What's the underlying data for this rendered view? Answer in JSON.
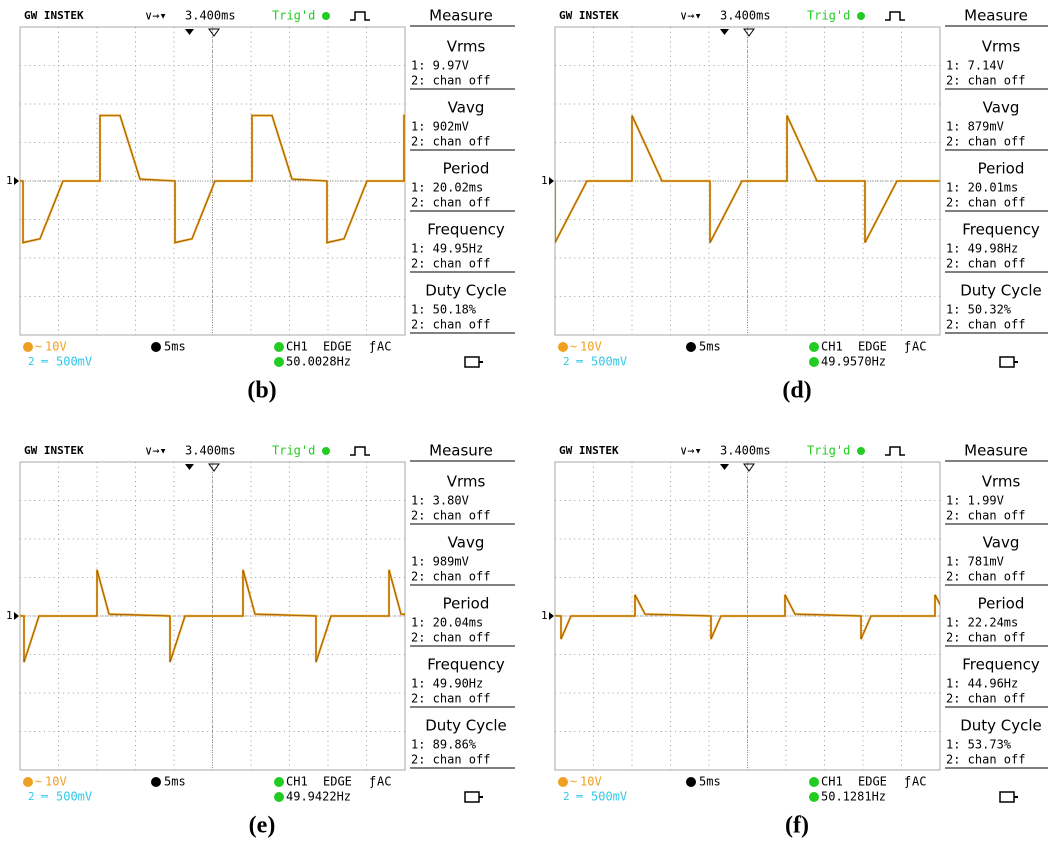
{
  "panels": [
    {
      "header": {
        "brand": "GW INSTEK",
        "timebase": "3.400ms",
        "trigger_status": "Trig'd",
        "menu": "Measure"
      },
      "measurements": [
        {
          "name": "Vrms",
          "ch1": "1: 9.97V",
          "ch2": "2: chan off"
        },
        {
          "name": "Vavg",
          "ch1": "1: 902mV",
          "ch2": "2: chan off"
        },
        {
          "name": "Period",
          "ch1": "1: 20.02ms",
          "ch2": "2: chan off"
        },
        {
          "name": "Frequency",
          "ch1": "1: 49.95Hz",
          "ch2": "2: chan off"
        },
        {
          "name": "Duty Cycle",
          "ch1": "1: 50.18%",
          "ch2": "2: chan off"
        }
      ],
      "footer": {
        "ch1_scale": "10V",
        "ch2_scale": "500mV",
        "time_scale": "5ms",
        "trigger_source": "CH1",
        "trigger_type": "EDGE",
        "trigger_coupling": "AC",
        "trigger_frequency": "50.0028Hz"
      },
      "channel_marker": "1",
      "caption": "(b)"
    },
    {
      "header": {
        "brand": "GW INSTEK",
        "timebase": "3.400ms",
        "trigger_status": "Trig'd",
        "menu": "Measure"
      },
      "measurements": [
        {
          "name": "Vrms",
          "ch1": "1: 7.14V",
          "ch2": "2: chan off"
        },
        {
          "name": "Vavg",
          "ch1": "1: 879mV",
          "ch2": "2: chan off"
        },
        {
          "name": "Period",
          "ch1": "1: 20.01ms",
          "ch2": "2: chan off"
        },
        {
          "name": "Frequency",
          "ch1": "1: 49.98Hz",
          "ch2": "2: chan off"
        },
        {
          "name": "Duty Cycle",
          "ch1": "1: 50.32%",
          "ch2": "2: chan off"
        }
      ],
      "footer": {
        "ch1_scale": "10V",
        "ch2_scale": "500mV",
        "time_scale": "5ms",
        "trigger_source": "CH1",
        "trigger_type": "EDGE",
        "trigger_coupling": "AC",
        "trigger_frequency": "49.9570Hz"
      },
      "channel_marker": "1",
      "caption": "(d)"
    },
    {
      "header": {
        "brand": "GW INSTEK",
        "timebase": "3.400ms",
        "trigger_status": "Trig'd",
        "menu": "Measure"
      },
      "measurements": [
        {
          "name": "Vrms",
          "ch1": "1: 3.80V",
          "ch2": "2: chan off"
        },
        {
          "name": "Vavg",
          "ch1": "1: 989mV",
          "ch2": "2: chan off"
        },
        {
          "name": "Period",
          "ch1": "1: 20.04ms",
          "ch2": "2: chan off"
        },
        {
          "name": "Frequency",
          "ch1": "1: 49.90Hz",
          "ch2": "2: chan off"
        },
        {
          "name": "Duty Cycle",
          "ch1": "1: 89.86%",
          "ch2": "2: chan off"
        }
      ],
      "footer": {
        "ch1_scale": "10V",
        "ch2_scale": "500mV",
        "time_scale": "5ms",
        "trigger_source": "CH1",
        "trigger_type": "EDGE",
        "trigger_coupling": "AC",
        "trigger_frequency": "49.9422Hz"
      },
      "channel_marker": "1",
      "caption": "(e)"
    },
    {
      "header": {
        "brand": "GW INSTEK",
        "timebase": "3.400ms",
        "trigger_status": "Trig'd",
        "menu": "Measure"
      },
      "measurements": [
        {
          "name": "Vrms",
          "ch1": "1: 1.99V",
          "ch2": "2: chan off"
        },
        {
          "name": "Vavg",
          "ch1": "1: 781mV",
          "ch2": "2: chan off"
        },
        {
          "name": "Period",
          "ch1": "1: 22.24ms",
          "ch2": "2: chan off"
        },
        {
          "name": "Frequency",
          "ch1": "1: 44.96Hz",
          "ch2": "2: chan off"
        },
        {
          "name": "Duty Cycle",
          "ch1": "1: 53.73%",
          "ch2": "2: chan off"
        }
      ],
      "footer": {
        "ch1_scale": "10V",
        "ch2_scale": "500mV",
        "time_scale": "5ms",
        "trigger_source": "CH1",
        "trigger_type": "EDGE",
        "trigger_coupling": "AC",
        "trigger_frequency": "50.1281Hz"
      },
      "channel_marker": "1",
      "caption": "(f)"
    }
  ]
}
